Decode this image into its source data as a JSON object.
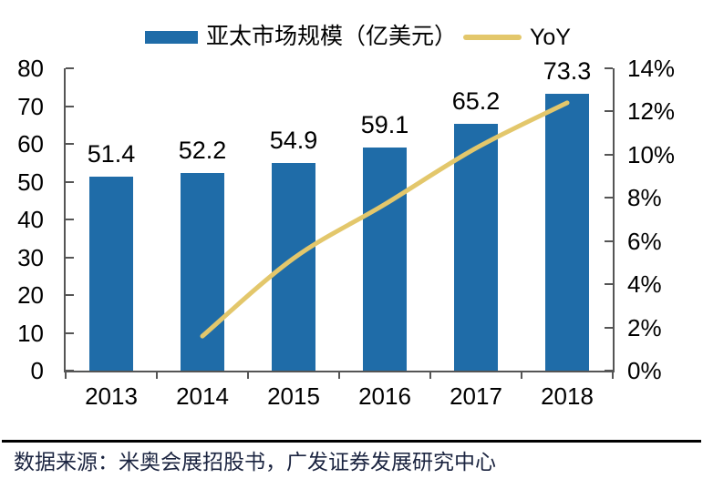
{
  "legend": {
    "bar_label": "亚太市场规模（亿美元）",
    "line_label": "YoY"
  },
  "source_note": "数据来源：米奥会展招股书，广发证券发展研究中心",
  "colors": {
    "bar": "#1F6CA8",
    "line": "#E3C76B",
    "axis": "#555555",
    "tick_text": "#000000",
    "value_label": "#000000",
    "divider": "#000000",
    "source_text": "#1B2440"
  },
  "chart_data": {
    "type": "bar",
    "subtype": "bar-line combo with dual y-axes",
    "title": "",
    "categories": [
      "2013",
      "2014",
      "2015",
      "2016",
      "2017",
      "2018"
    ],
    "series": [
      {
        "name": "亚太市场规模（亿美元）",
        "type": "bar",
        "axis": "left",
        "values": [
          51.4,
          52.2,
          54.9,
          59.1,
          65.2,
          73.3
        ],
        "value_labels": [
          "51.4",
          "52.2",
          "54.9",
          "59.1",
          "65.2",
          "73.3"
        ]
      },
      {
        "name": "YoY",
        "type": "line",
        "axis": "right",
        "values": [
          null,
          1.6,
          5.2,
          7.7,
          10.3,
          12.4
        ]
      }
    ],
    "left_axis": {
      "min": 0,
      "max": 80,
      "step": 10,
      "tick_labels": [
        "0",
        "10",
        "20",
        "30",
        "40",
        "50",
        "60",
        "70",
        "80"
      ]
    },
    "right_axis": {
      "min": 0,
      "max": 14,
      "step": 2,
      "tick_labels": [
        "0%",
        "2%",
        "4%",
        "6%",
        "8%",
        "10%",
        "12%",
        "14%"
      ]
    },
    "grid": false,
    "legend_position": "top"
  }
}
